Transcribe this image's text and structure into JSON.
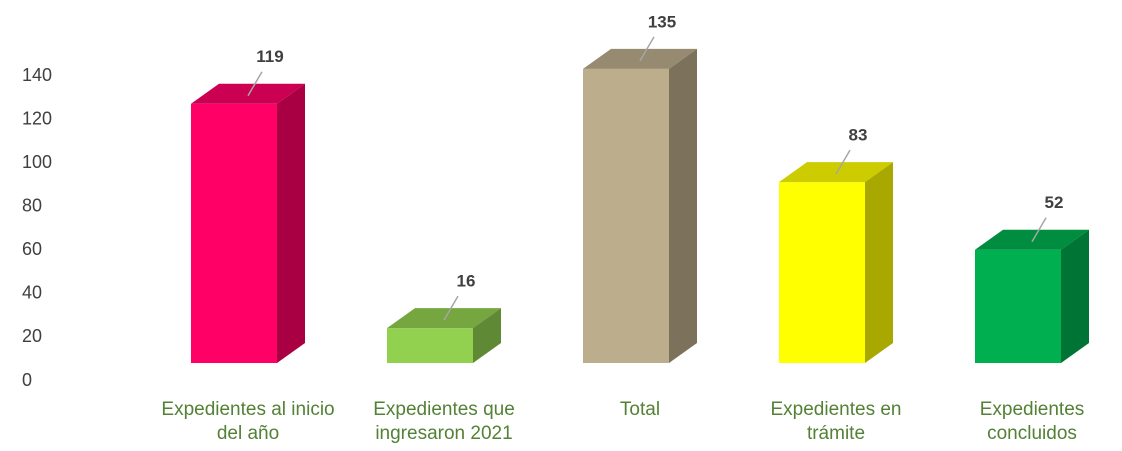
{
  "chart_data": {
    "type": "bar3d",
    "categories": [
      "Expedientes al inicio del año",
      "Expedientes que ingresaron 2021",
      "Total",
      "Expedientes en trámite",
      "Expedientes concluidos"
    ],
    "values": [
      119,
      16,
      135,
      83,
      52
    ],
    "colors": [
      "#ff0066",
      "#92d050",
      "#bcad8c",
      "#ffff00",
      "#00b050"
    ],
    "ylim": [
      0,
      140
    ],
    "yticks": [
      0,
      20,
      40,
      60,
      80,
      100,
      120,
      140
    ],
    "grid": false
  }
}
